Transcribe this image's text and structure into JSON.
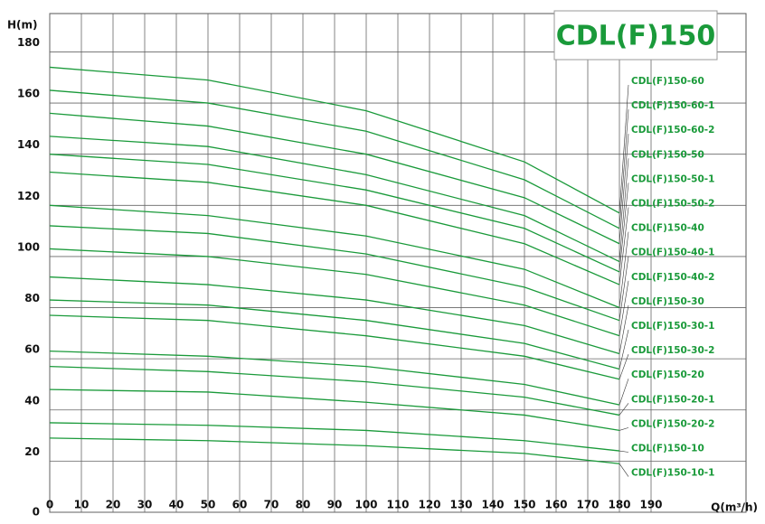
{
  "chart_data": {
    "type": "line",
    "title": "CDL(F)150",
    "y_label": "H(m)",
    "x_label": "Q(m³/h)",
    "x": [
      0,
      50,
      100,
      150,
      180
    ],
    "xlim": [
      0,
      220
    ],
    "xticks": [
      0,
      10,
      20,
      30,
      40,
      50,
      60,
      70,
      80,
      90,
      100,
      110,
      120,
      130,
      140,
      150,
      160,
      170,
      180,
      190
    ],
    "ylim": [
      0,
      195
    ],
    "yticks": [
      0,
      20,
      40,
      60,
      80,
      100,
      120,
      140,
      160,
      180
    ],
    "grid": true,
    "series": [
      {
        "name": "CDL(F)150-60",
        "color": "#1a9a3a",
        "values": [
          174,
          169,
          157,
          137,
          117
        ]
      },
      {
        "name": "CDL(F)150-60-1",
        "color": "#1a9a3a",
        "values": [
          165,
          160,
          149,
          130,
          111
        ]
      },
      {
        "name": "CDL(F)150-60-2",
        "color": "#1a9a3a",
        "values": [
          156,
          151,
          140,
          123,
          105
        ]
      },
      {
        "name": "CDL(F)150-50",
        "color": "#1a9a3a",
        "values": [
          147,
          143,
          132,
          116,
          98
        ]
      },
      {
        "name": "CDL(F)150-50-1",
        "color": "#1a9a3a",
        "values": [
          140,
          136,
          126,
          111,
          94
        ]
      },
      {
        "name": "CDL(F)150-50-2",
        "color": "#1a9a3a",
        "values": [
          133,
          129,
          120,
          105,
          89
        ]
      },
      {
        "name": "CDL(F)150-40",
        "color": "#1a9a3a",
        "values": [
          120,
          116,
          108,
          95,
          80
        ]
      },
      {
        "name": "CDL(F)150-40-1",
        "color": "#1a9a3a",
        "values": [
          112,
          109,
          101,
          88,
          75
        ]
      },
      {
        "name": "CDL(F)150-40-2",
        "color": "#1a9a3a",
        "values": [
          103,
          100,
          93,
          81,
          69
        ]
      },
      {
        "name": "CDL(F)150-30",
        "color": "#1a9a3a",
        "values": [
          92,
          89,
          83,
          73,
          62
        ]
      },
      {
        "name": "CDL(F)150-30-1",
        "color": "#1a9a3a",
        "values": [
          83,
          81,
          75,
          66,
          56
        ]
      },
      {
        "name": "CDL(F)150-30-2",
        "color": "#1a9a3a",
        "values": [
          77,
          75,
          69,
          61,
          52
        ]
      },
      {
        "name": "CDL(F)150-20",
        "color": "#1a9a3a",
        "values": [
          63,
          61,
          57,
          50,
          42
        ]
      },
      {
        "name": "CDL(F)150-20-1",
        "color": "#1a9a3a",
        "values": [
          57,
          55,
          51,
          45,
          38
        ]
      },
      {
        "name": "CDL(F)150-20-2",
        "color": "#1a9a3a",
        "values": [
          48,
          47,
          43,
          38,
          32
        ]
      },
      {
        "name": "CDL(F)150-10",
        "color": "#1a9a3a",
        "values": [
          35,
          34,
          32,
          28,
          24
        ]
      },
      {
        "name": "CDL(F)150-10-1",
        "color": "#1a9a3a",
        "values": [
          29,
          28,
          26,
          23,
          19
        ]
      }
    ]
  }
}
